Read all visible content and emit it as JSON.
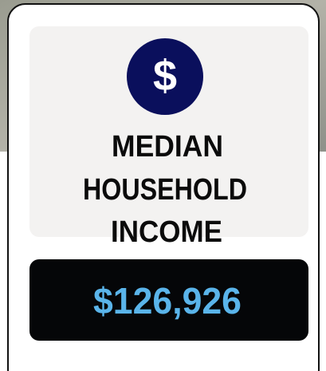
{
  "card": {
    "icon": "$",
    "title_lines": [
      "MEDIAN",
      "HOUSEHOLD",
      "INCOME"
    ],
    "value": "$126,926"
  }
}
